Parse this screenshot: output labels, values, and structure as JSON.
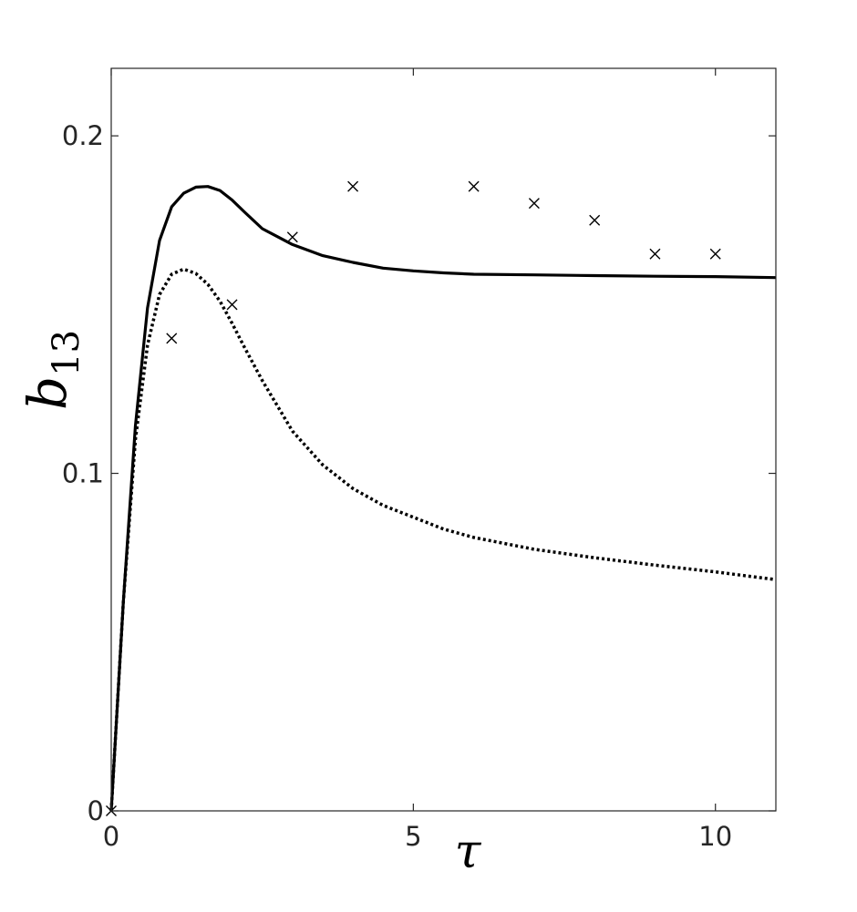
{
  "chart_data": {
    "type": "line",
    "title": "",
    "xlabel": "τ",
    "ylabel": "b",
    "ylabel_subscript": "13",
    "xlim": [
      0,
      11
    ],
    "ylim": [
      0,
      0.22
    ],
    "xticks": [
      0,
      5,
      10
    ],
    "xtick_labels": [
      "0",
      "5",
      "10"
    ],
    "yticks": [
      0,
      0.1,
      0.2
    ],
    "ytick_labels": [
      "0",
      "0.1",
      "0.2"
    ],
    "grid": false,
    "legend": "none",
    "series": [
      {
        "style": "solid",
        "x": [
          0,
          0.2,
          0.4,
          0.6,
          0.8,
          1.0,
          1.2,
          1.4,
          1.6,
          1.8,
          2.0,
          2.2,
          2.5,
          3.0,
          3.5,
          4.0,
          4.5,
          5.0,
          5.5,
          6.0,
          7.0,
          8.0,
          9.0,
          10.0,
          11.0
        ],
        "y": [
          0,
          0.062,
          0.114,
          0.149,
          0.169,
          0.179,
          0.183,
          0.1848,
          0.185,
          0.1838,
          0.181,
          0.1775,
          0.1725,
          0.1678,
          0.1645,
          0.1625,
          0.1608,
          0.16,
          0.1594,
          0.159,
          0.1588,
          0.1586,
          0.1584,
          0.1583,
          0.158
        ]
      },
      {
        "style": "dotted",
        "x": [
          0,
          0.2,
          0.4,
          0.6,
          0.8,
          1.0,
          1.2,
          1.4,
          1.6,
          1.8,
          2.0,
          2.2,
          2.5,
          3.0,
          3.5,
          4.0,
          4.5,
          5.0,
          5.5,
          6.0,
          7.0,
          8.0,
          9.0,
          10.0,
          11.0
        ],
        "y": [
          0,
          0.062,
          0.11,
          0.138,
          0.153,
          0.159,
          0.1605,
          0.1592,
          0.156,
          0.151,
          0.1445,
          0.1375,
          0.1275,
          0.1125,
          0.1025,
          0.0955,
          0.0905,
          0.087,
          0.0835,
          0.081,
          0.0775,
          0.075,
          0.0728,
          0.0708,
          0.0685
        ]
      },
      {
        "style": "markers",
        "marker": "x",
        "x": [
          0,
          1,
          2,
          3,
          4,
          6,
          7,
          8,
          9,
          10
        ],
        "y": [
          0,
          0.14,
          0.15,
          0.17,
          0.185,
          0.185,
          0.18,
          0.175,
          0.165,
          0.165
        ]
      }
    ],
    "colors": {
      "line": "#000000",
      "axis": "#262626"
    }
  }
}
